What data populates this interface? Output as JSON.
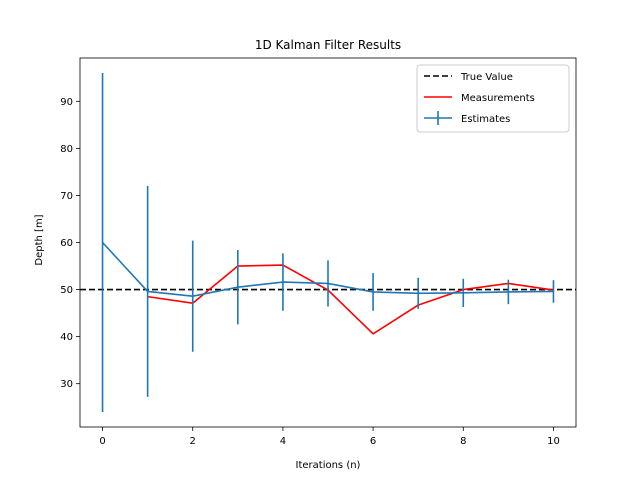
{
  "chart_data": {
    "type": "line",
    "title": "1D Kalman Filter Results",
    "xlabel": "Iterations (n)",
    "ylabel": "Depth [m]",
    "xlim": [
      -0.5,
      10.5
    ],
    "ylim": [
      20.8,
      99.2
    ],
    "xticks": [
      0,
      2,
      4,
      6,
      8,
      10
    ],
    "yticks": [
      30,
      40,
      50,
      60,
      70,
      80,
      90
    ],
    "legend_position": "top-right",
    "true_value": {
      "name": "True Value",
      "value": 50,
      "color": "#000000",
      "style": "dashed"
    },
    "series": [
      {
        "name": "Measurements",
        "color": "#ff0000",
        "x": [
          1,
          2,
          3,
          4,
          5,
          6,
          7,
          8,
          9,
          10
        ],
        "values": [
          48.5,
          47.1,
          55.0,
          55.2,
          49.9,
          40.6,
          46.7,
          50.0,
          51.3,
          49.9
        ]
      },
      {
        "name": "Estimates",
        "color": "#1f77b4",
        "x": [
          0,
          1,
          2,
          3,
          4,
          5,
          6,
          7,
          8,
          9,
          10
        ],
        "values": [
          60.0,
          49.6,
          48.6,
          50.5,
          51.6,
          51.3,
          49.5,
          49.2,
          49.3,
          49.5,
          49.6
        ],
        "error": [
          36.0,
          22.4,
          11.8,
          7.9,
          6.1,
          4.9,
          4.0,
          3.3,
          3.0,
          2.6,
          2.4
        ]
      }
    ]
  }
}
